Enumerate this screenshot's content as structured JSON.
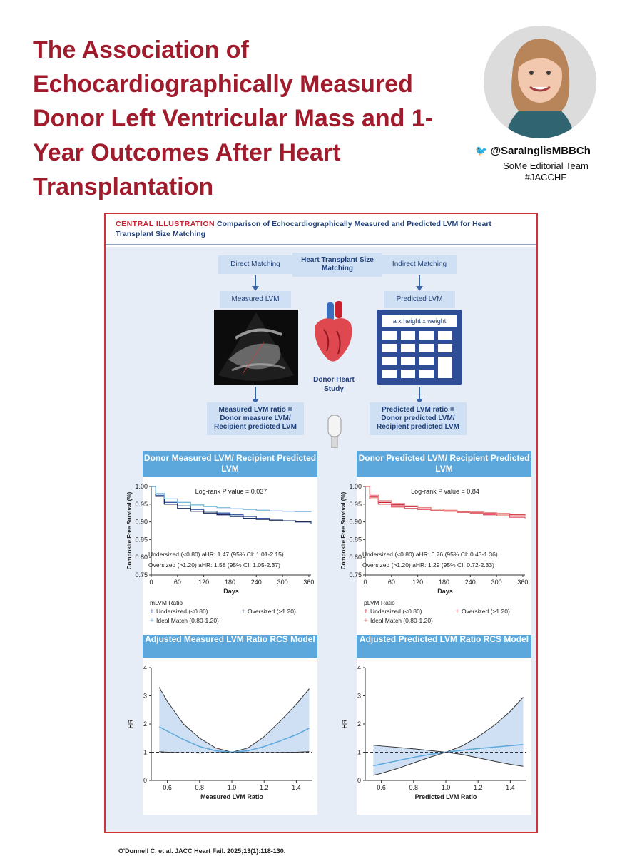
{
  "title": "The Association of Echocardiographically Measured Donor Left Ventricular Mass and 1-Year Outcomes After Heart Transplantation",
  "author": {
    "handle": "@SaraInglisMBBCh",
    "team": "SoMe Editorial Team",
    "hashtag": "#JACCHF"
  },
  "central_illustration": {
    "tag": "CENTRAL ILLUSTRATION",
    "heading": "Comparison of Echocardiographically Measured and Predicted LVM for Heart Transplant Size Matching",
    "flow": {
      "direct": "Direct Matching",
      "center": "Heart Transplant Size Matching",
      "indirect": "Indirect Matching",
      "measured": "Measured LVM",
      "predicted": "Predicted LVM",
      "formula": "a x height x weight",
      "study": "Donor Heart Study",
      "ratio_left": "Measured LVM ratio = Donor measure LVM/ Recipient predicted LVM",
      "ratio_right": "Predicted LVM ratio = Donor predicted LVM/ Recipient predicted LVM"
    },
    "citation": "O'Donnell C, et al. JACC Heart Fail. 2025;13(1):118-130."
  },
  "chart_data": [
    {
      "type": "line",
      "title": "Donor Measured LVM/ Recipient Predicted LVM",
      "xlabel": "Days",
      "ylabel": "Composite Free Survival (%)",
      "xlim": [
        0,
        365
      ],
      "ylim": [
        0.75,
        1.0
      ],
      "xticks": [
        "0",
        "60",
        "120",
        "180",
        "240",
        "300",
        "360"
      ],
      "yticks": [
        "0.75",
        "0.80",
        "0.85",
        "0.90",
        "0.95",
        "1.00"
      ],
      "annotation": "Log-rank P value = 0.037",
      "stats": [
        "Undersized (<0.80) aHR: 1.47 (95% CI: 1.01-2.15)",
        "Oversized (>1.20) aHR: 1.58 (95% CI: 1.05-2.37)"
      ],
      "legend_title": "mLVM Ratio",
      "series": [
        {
          "name": "Undersized (<0.80)",
          "color": "#3a5fa8",
          "x": [
            0,
            10,
            30,
            60,
            90,
            120,
            150,
            180,
            210,
            240,
            270,
            300,
            330,
            365
          ],
          "values": [
            1.0,
            0.975,
            0.955,
            0.945,
            0.935,
            0.93,
            0.925,
            0.92,
            0.915,
            0.91,
            0.905,
            0.903,
            0.9,
            0.895
          ]
        },
        {
          "name": "Oversized (>1.20)",
          "color": "#1b2e5c",
          "x": [
            0,
            10,
            30,
            60,
            90,
            120,
            150,
            180,
            210,
            240,
            270,
            300,
            330,
            365
          ],
          "values": [
            1.0,
            0.972,
            0.95,
            0.938,
            0.93,
            0.925,
            0.92,
            0.915,
            0.91,
            0.907,
            0.905,
            0.903,
            0.9,
            0.9
          ]
        },
        {
          "name": "Ideal Match (0.80-1.20)",
          "color": "#7ab9e0",
          "x": [
            0,
            10,
            30,
            60,
            90,
            120,
            150,
            180,
            210,
            240,
            270,
            300,
            330,
            365
          ],
          "values": [
            1.0,
            0.98,
            0.965,
            0.955,
            0.948,
            0.943,
            0.94,
            0.937,
            0.935,
            0.933,
            0.931,
            0.93,
            0.929,
            0.928
          ]
        }
      ]
    },
    {
      "type": "line",
      "title": "Donor Predicted LVM/ Recipient Predicted LVM",
      "xlabel": "Days",
      "ylabel": "Composite Free Survival (%)",
      "xlim": [
        0,
        365
      ],
      "ylim": [
        0.75,
        1.0
      ],
      "xticks": [
        "0",
        "60",
        "120",
        "180",
        "240",
        "300",
        "360"
      ],
      "yticks": [
        "0.75",
        "0.80",
        "0.85",
        "0.90",
        "0.95",
        "1.00"
      ],
      "annotation": "Log-rank P value = 0.84",
      "stats": [
        "Undersized (<0.80) aHR: 0.76 (95% CI: 0.43-1.36)",
        "Oversized (>1.20) aHR: 1.29 (95% CI: 0.72-2.33)"
      ],
      "legend_title": "pLVM Ratio",
      "series": [
        {
          "name": "Undersized (<0.80)",
          "color": "#c8202e",
          "x": [
            0,
            10,
            30,
            60,
            90,
            120,
            150,
            180,
            210,
            240,
            270,
            300,
            330,
            365
          ],
          "values": [
            1.0,
            0.97,
            0.955,
            0.948,
            0.943,
            0.94,
            0.936,
            0.932,
            0.93,
            0.928,
            0.925,
            0.922,
            0.92,
            0.918
          ]
        },
        {
          "name": "Oversized (>1.20)",
          "color": "#e0555f",
          "x": [
            0,
            10,
            30,
            60,
            90,
            120,
            150,
            180,
            210,
            240,
            270,
            300,
            330,
            365
          ],
          "values": [
            1.0,
            0.965,
            0.95,
            0.942,
            0.938,
            0.935,
            0.932,
            0.93,
            0.927,
            0.925,
            0.92,
            0.917,
            0.913,
            0.91
          ]
        },
        {
          "name": "Ideal Match (0.80-1.20)",
          "color": "#ec8f8f",
          "x": [
            0,
            10,
            30,
            60,
            90,
            120,
            150,
            180,
            210,
            240,
            270,
            300,
            330,
            365
          ],
          "values": [
            1.0,
            0.975,
            0.96,
            0.952,
            0.945,
            0.94,
            0.936,
            0.933,
            0.93,
            0.928,
            0.926,
            0.924,
            0.922,
            0.92
          ]
        }
      ]
    },
    {
      "type": "area",
      "title": "Adjusted Measured LVM Ratio RCS Model",
      "xlabel": "Measured LVM Ratio",
      "ylabel": "HR",
      "xlim": [
        0.5,
        1.5
      ],
      "ylim": [
        0,
        4
      ],
      "xticks": [
        "0.6",
        "0.8",
        "1.0",
        "1.2",
        "1.4"
      ],
      "yticks": [
        "0",
        "1",
        "2",
        "3",
        "4"
      ],
      "reference_line": 1,
      "x": [
        0.55,
        0.6,
        0.7,
        0.8,
        0.9,
        1.0,
        1.1,
        1.2,
        1.3,
        1.4,
        1.48
      ],
      "hr": [
        1.9,
        1.75,
        1.45,
        1.2,
        1.05,
        1.0,
        1.05,
        1.2,
        1.4,
        1.62,
        1.85
      ],
      "upper": [
        3.3,
        2.8,
        2.0,
        1.5,
        1.15,
        1.0,
        1.15,
        1.55,
        2.1,
        2.7,
        3.25
      ],
      "lower": [
        1.02,
        1.0,
        0.98,
        0.97,
        0.98,
        1.0,
        0.99,
        0.98,
        0.99,
        1.0,
        1.02
      ]
    },
    {
      "type": "area",
      "title": "Adjusted Predicted LVM Ratio RCS Model",
      "xlabel": "Predicted LVM Ratio",
      "ylabel": "HR",
      "xlim": [
        0.5,
        1.5
      ],
      "ylim": [
        0,
        4
      ],
      "xticks": [
        "0.6",
        "0.8",
        "1.0",
        "1.2",
        "1.4"
      ],
      "yticks": [
        "0",
        "1",
        "2",
        "3",
        "4"
      ],
      "reference_line": 1,
      "x": [
        0.55,
        0.6,
        0.7,
        0.8,
        0.9,
        1.0,
        1.1,
        1.2,
        1.3,
        1.4,
        1.48
      ],
      "hr": [
        0.52,
        0.58,
        0.7,
        0.82,
        0.92,
        1.0,
        1.07,
        1.13,
        1.18,
        1.23,
        1.27
      ],
      "upper": [
        1.25,
        1.22,
        1.17,
        1.12,
        1.06,
        1.0,
        1.22,
        1.55,
        1.95,
        2.45,
        2.95
      ],
      "lower": [
        0.18,
        0.25,
        0.42,
        0.62,
        0.82,
        1.0,
        0.92,
        0.8,
        0.68,
        0.57,
        0.5
      ]
    }
  ]
}
